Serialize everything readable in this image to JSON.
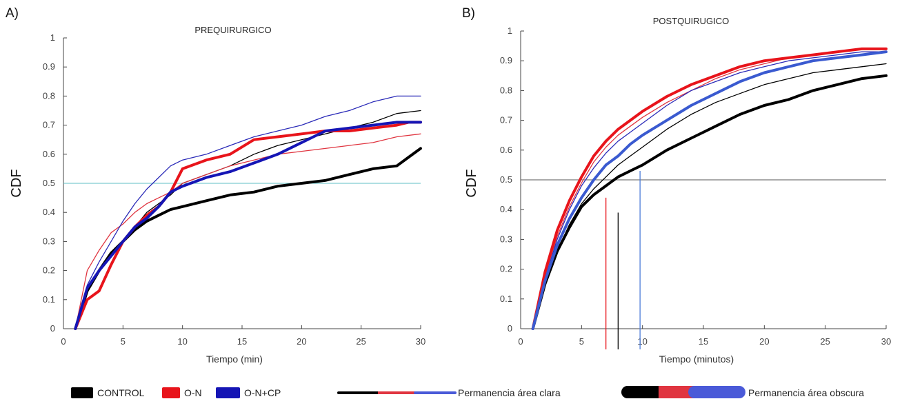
{
  "legend": {
    "groups": [
      {
        "label": "CONTROL",
        "color": "#000000"
      },
      {
        "label": "O-N",
        "color": "#e8141b"
      },
      {
        "label": "O-N+CP",
        "color": "#1515b5"
      }
    ],
    "thin_label": "Permanencia área clara",
    "thick_label": "Permanencia área obscura",
    "thin_colors": [
      "#000000",
      "#e03540",
      "#4a5ad8"
    ],
    "thick_colors": [
      "#000000",
      "#e03540",
      "#4a5ad8"
    ]
  },
  "chart_data": [
    {
      "panel_label": "A)",
      "type": "line",
      "title": "PREQUIRURGICO",
      "xlabel": "Tiempo (min)",
      "ylabel": "CDF",
      "xlim": [
        0,
        30
      ],
      "ylim": [
        0,
        1
      ],
      "xticks": [
        0,
        5,
        10,
        15,
        20,
        25,
        30
      ],
      "yticks": [
        0,
        0.1,
        0.2,
        0.3,
        0.4,
        0.5,
        0.6,
        0.7,
        0.8,
        0.9,
        1
      ],
      "grid": false,
      "reference_lines": [
        {
          "y": 0.5,
          "color": "#5fbfc4"
        }
      ],
      "series": [
        {
          "name": "CONTROL",
          "style": "thin",
          "color": "#000000",
          "x": [
            1,
            2,
            3,
            4,
            5,
            6,
            7,
            8,
            9,
            10,
            12,
            14,
            16,
            18,
            20,
            22,
            24,
            26,
            28,
            30
          ],
          "y": [
            0,
            0.13,
            0.2,
            0.26,
            0.3,
            0.35,
            0.4,
            0.43,
            0.46,
            0.5,
            0.53,
            0.56,
            0.6,
            0.63,
            0.65,
            0.67,
            0.69,
            0.71,
            0.74,
            0.75
          ]
        },
        {
          "name": "CONTROL",
          "style": "thick",
          "color": "#000000",
          "x": [
            1,
            2,
            3,
            4,
            5,
            6,
            7,
            8,
            9,
            10,
            12,
            14,
            16,
            18,
            20,
            22,
            24,
            26,
            28,
            29,
            30
          ],
          "y": [
            0,
            0.13,
            0.2,
            0.26,
            0.3,
            0.34,
            0.37,
            0.39,
            0.41,
            0.42,
            0.44,
            0.46,
            0.47,
            0.49,
            0.5,
            0.51,
            0.53,
            0.55,
            0.56,
            0.59,
            0.62
          ]
        },
        {
          "name": "O-N",
          "style": "thin",
          "color": "#e03540",
          "x": [
            1,
            2,
            3,
            4,
            5,
            6,
            7,
            8,
            9,
            10,
            12,
            14,
            16,
            18,
            20,
            22,
            24,
            26,
            28,
            30
          ],
          "y": [
            0,
            0.2,
            0.27,
            0.33,
            0.36,
            0.4,
            0.43,
            0.45,
            0.47,
            0.5,
            0.53,
            0.56,
            0.58,
            0.6,
            0.61,
            0.62,
            0.63,
            0.64,
            0.66,
            0.67
          ]
        },
        {
          "name": "O-N",
          "style": "thick",
          "color": "#e8141b",
          "x": [
            1,
            2,
            3,
            4,
            5,
            6,
            7,
            8,
            9,
            10,
            12,
            14,
            16,
            18,
            20,
            22,
            24,
            26,
            28,
            29,
            30
          ],
          "y": [
            0,
            0.1,
            0.13,
            0.22,
            0.3,
            0.35,
            0.39,
            0.42,
            0.47,
            0.55,
            0.58,
            0.6,
            0.65,
            0.66,
            0.67,
            0.68,
            0.68,
            0.69,
            0.7,
            0.71,
            0.71
          ]
        },
        {
          "name": "O-N+CP",
          "style": "thin",
          "color": "#2a2ab8",
          "x": [
            1,
            2,
            3,
            4,
            5,
            6,
            7,
            8,
            9,
            10,
            12,
            14,
            16,
            18,
            20,
            22,
            24,
            26,
            28,
            30
          ],
          "y": [
            0,
            0.15,
            0.23,
            0.3,
            0.37,
            0.43,
            0.48,
            0.52,
            0.56,
            0.58,
            0.6,
            0.63,
            0.66,
            0.68,
            0.7,
            0.73,
            0.75,
            0.78,
            0.8,
            0.8
          ]
        },
        {
          "name": "O-N+CP",
          "style": "thick",
          "color": "#1515b5",
          "x": [
            1,
            2,
            3,
            4,
            5,
            6,
            7,
            8,
            9,
            10,
            12,
            14,
            16,
            18,
            20,
            22,
            24,
            26,
            28,
            30
          ],
          "y": [
            0,
            0.14,
            0.2,
            0.25,
            0.3,
            0.35,
            0.38,
            0.42,
            0.47,
            0.49,
            0.52,
            0.54,
            0.57,
            0.6,
            0.64,
            0.68,
            0.69,
            0.7,
            0.71,
            0.71
          ]
        }
      ]
    },
    {
      "panel_label": "B)",
      "type": "line",
      "title": "POSTQUIRUGICO",
      "xlabel": "Tiempo (minutos)",
      "ylabel": "CDF",
      "xlim": [
        0,
        30
      ],
      "ylim": [
        0,
        1
      ],
      "xticks": [
        0,
        5,
        10,
        15,
        20,
        25,
        30
      ],
      "yticks": [
        0,
        0.1,
        0.2,
        0.3,
        0.4,
        0.5,
        0.6,
        0.7,
        0.8,
        0.9,
        1
      ],
      "grid": false,
      "reference_lines": [
        {
          "y": 0.5,
          "color": "#555555"
        }
      ],
      "markers": [
        {
          "x": 7,
          "y_top": 0.44,
          "color": "#e8141b"
        },
        {
          "x": 8,
          "y_top": 0.39,
          "color": "#000000"
        },
        {
          "x": 9.8,
          "y_top": 0.53,
          "color": "#4a7ad8"
        }
      ],
      "series": [
        {
          "name": "CONTROL",
          "style": "thin",
          "color": "#000000",
          "x": [
            1,
            2,
            3,
            4,
            5,
            6,
            7,
            8,
            9,
            10,
            12,
            14,
            16,
            18,
            20,
            22,
            24,
            26,
            28,
            30
          ],
          "y": [
            0,
            0.15,
            0.26,
            0.35,
            0.42,
            0.47,
            0.51,
            0.55,
            0.58,
            0.61,
            0.67,
            0.72,
            0.76,
            0.79,
            0.82,
            0.84,
            0.86,
            0.87,
            0.88,
            0.89
          ]
        },
        {
          "name": "CONTROL",
          "style": "thick",
          "color": "#000000",
          "x": [
            1,
            2,
            3,
            4,
            5,
            6,
            7,
            8,
            9,
            10,
            12,
            14,
            16,
            18,
            20,
            22,
            24,
            26,
            28,
            30
          ],
          "y": [
            0,
            0.15,
            0.26,
            0.34,
            0.41,
            0.45,
            0.48,
            0.51,
            0.53,
            0.55,
            0.6,
            0.64,
            0.68,
            0.72,
            0.75,
            0.77,
            0.8,
            0.82,
            0.84,
            0.85
          ]
        },
        {
          "name": "O-N",
          "style": "thin",
          "color": "#e03540",
          "x": [
            1,
            2,
            3,
            4,
            5,
            6,
            7,
            8,
            9,
            10,
            12,
            14,
            16,
            18,
            20,
            22,
            24,
            26,
            28,
            30
          ],
          "y": [
            0,
            0.18,
            0.31,
            0.41,
            0.49,
            0.56,
            0.61,
            0.65,
            0.68,
            0.71,
            0.76,
            0.8,
            0.84,
            0.87,
            0.89,
            0.91,
            0.92,
            0.93,
            0.94,
            0.94
          ]
        },
        {
          "name": "O-N",
          "style": "thick",
          "color": "#e8141b",
          "x": [
            1,
            2,
            3,
            4,
            5,
            6,
            7,
            8,
            9,
            10,
            12,
            14,
            16,
            18,
            20,
            22,
            24,
            26,
            28,
            30
          ],
          "y": [
            0,
            0.19,
            0.33,
            0.43,
            0.51,
            0.58,
            0.63,
            0.67,
            0.7,
            0.73,
            0.78,
            0.82,
            0.85,
            0.88,
            0.9,
            0.91,
            0.92,
            0.93,
            0.94,
            0.94
          ]
        },
        {
          "name": "O-N+CP",
          "style": "thin",
          "color": "#2a2ab8",
          "x": [
            1,
            2,
            3,
            4,
            5,
            6,
            7,
            8,
            9,
            10,
            12,
            14,
            16,
            18,
            20,
            22,
            24,
            26,
            28,
            30
          ],
          "y": [
            0,
            0.17,
            0.3,
            0.4,
            0.48,
            0.54,
            0.59,
            0.63,
            0.66,
            0.69,
            0.75,
            0.8,
            0.83,
            0.86,
            0.88,
            0.9,
            0.91,
            0.92,
            0.93,
            0.93
          ]
        },
        {
          "name": "O-N+CP",
          "style": "thick",
          "color": "#3a5ad0",
          "x": [
            1,
            2,
            3,
            4,
            5,
            6,
            7,
            8,
            9,
            10,
            12,
            14,
            16,
            18,
            20,
            22,
            24,
            26,
            28,
            30
          ],
          "y": [
            0,
            0.16,
            0.28,
            0.37,
            0.44,
            0.5,
            0.55,
            0.58,
            0.62,
            0.65,
            0.7,
            0.75,
            0.79,
            0.83,
            0.86,
            0.88,
            0.9,
            0.91,
            0.92,
            0.93
          ]
        }
      ]
    }
  ]
}
